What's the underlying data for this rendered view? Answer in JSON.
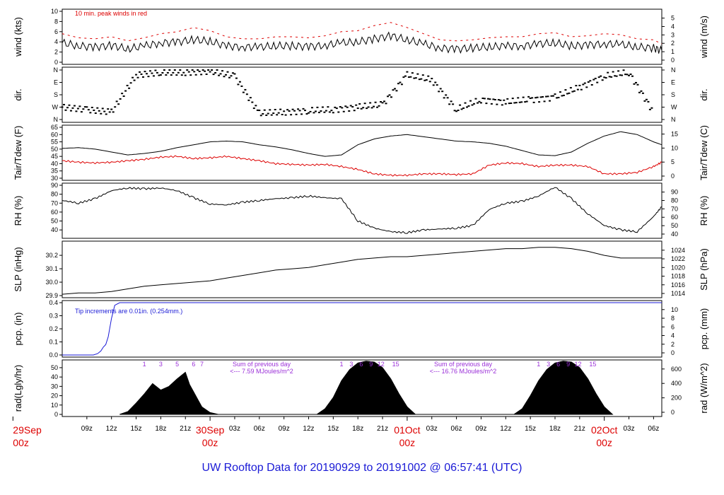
{
  "title": "UW Rooftop Data for 20190929  to  20191002 @ 06:57:41  (UTC)",
  "colors": {
    "series_black": "#000000",
    "series_red": "#dd0000",
    "series_blue": "#1a1ad6",
    "annot_purple": "#9b30d8",
    "title_blue": "#1a1ad6"
  },
  "x_axis": {
    "start": "2019-09-29 06:00Z",
    "end": "2019-10-02 06:57Z",
    "hour_ticks": [
      {
        "t": 3,
        "label": "09z"
      },
      {
        "t": 6,
        "label": "12z"
      },
      {
        "t": 9,
        "label": "15z"
      },
      {
        "t": 12,
        "label": "18z"
      },
      {
        "t": 15,
        "label": "21z"
      },
      {
        "t": 21,
        "label": "03z"
      },
      {
        "t": 24,
        "label": "06z"
      },
      {
        "t": 27,
        "label": "09z"
      },
      {
        "t": 30,
        "label": "12z"
      },
      {
        "t": 33,
        "label": "15z"
      },
      {
        "t": 36,
        "label": "18z"
      },
      {
        "t": 39,
        "label": "21z"
      },
      {
        "t": 45,
        "label": "03z"
      },
      {
        "t": 48,
        "label": "06z"
      },
      {
        "t": 51,
        "label": "09z"
      },
      {
        "t": 54,
        "label": "12z"
      },
      {
        "t": 57,
        "label": "15z"
      },
      {
        "t": 60,
        "label": "18z"
      },
      {
        "t": 63,
        "label": "21z"
      },
      {
        "t": 69,
        "label": "03z"
      },
      {
        "t": 72,
        "label": "06z"
      }
    ],
    "day_labels": [
      {
        "t": -6,
        "date": "29Sep",
        "hour": "00z"
      },
      {
        "t": 18,
        "date": "30Sep",
        "hour": "00z"
      },
      {
        "t": 42,
        "date": "01Oct",
        "hour": "00z"
      },
      {
        "t": 66,
        "date": "02Oct",
        "hour": "00z"
      }
    ]
  },
  "panels": [
    {
      "id": "wind",
      "left_label": "wind (kts)",
      "right_label": "wind (m/s)",
      "left_ticks": [
        "0",
        "2",
        "4",
        "6",
        "8",
        "10"
      ],
      "left_range": [
        0,
        10
      ],
      "right_ticks": [
        "0",
        "1",
        "2",
        "3",
        "4",
        "5"
      ],
      "right_range": [
        0,
        5
      ],
      "annotation": "10 min. peak winds in red"
    },
    {
      "id": "dir",
      "left_label": "dir.",
      "right_label": "dir.",
      "left_ticks": [
        "N",
        "E",
        "S",
        "W",
        "N"
      ],
      "right_ticks": [
        "N",
        "E",
        "S",
        "W",
        "N"
      ]
    },
    {
      "id": "temp",
      "left_label": "Tair/Tdew (F)",
      "right_label": "Tair/Tdew (C)",
      "left_ticks": [
        "30",
        "35",
        "40",
        "45",
        "50",
        "55",
        "60",
        "65"
      ],
      "left_range": [
        30,
        65
      ],
      "right_ticks": [
        "0",
        "5",
        "10",
        "15"
      ]
    },
    {
      "id": "rh",
      "left_label": "RH (%)",
      "right_label": "RH (%)",
      "left_ticks": [
        "40",
        "50",
        "60",
        "70",
        "80",
        "90"
      ],
      "left_range": [
        33,
        90
      ],
      "right_ticks": [
        "40",
        "50",
        "60",
        "70",
        "80",
        "90"
      ]
    },
    {
      "id": "slp",
      "left_label": "SLP (inHg)",
      "right_label": "SLP (hPa)",
      "left_ticks": [
        "29.9",
        "30.0",
        "30.1",
        "30.2"
      ],
      "left_range": [
        29.9,
        30.29
      ],
      "right_ticks": [
        "1014",
        "1016",
        "1018",
        "1020",
        "1022",
        "1024"
      ]
    },
    {
      "id": "pcp",
      "left_label": "pcp. (in)",
      "right_label": "pcp. (mm)",
      "left_ticks": [
        "0.0",
        "0.1",
        "0.2",
        "0.3",
        "0.4"
      ],
      "left_range": [
        0,
        0.4
      ],
      "right_ticks": [
        "0",
        "2",
        "4",
        "6",
        "8",
        "10"
      ],
      "annotation": "Tip increments are 0.01in. (0.254mm.)"
    },
    {
      "id": "rad",
      "left_label": "rad(Lgly/hr)",
      "right_label": "rad (W/m^2)",
      "left_ticks": [
        "0",
        "10",
        "20",
        "30",
        "40",
        "50"
      ],
      "left_range": [
        0,
        56
      ],
      "right_ticks": [
        "0",
        "200",
        "400",
        "600"
      ],
      "sum_notes": [
        {
          "line1": "Sum of previous day",
          "line2": "<--- 7.59 MJoules/m^2"
        },
        {
          "line1": "Sum of previous day",
          "line2": "<--- 16.76 MJoules/m^2"
        }
      ],
      "hour_marks": [
        {
          "t": 10,
          "label": "1"
        },
        {
          "t": 12,
          "label": "3"
        },
        {
          "t": 14,
          "label": "5"
        },
        {
          "t": 16,
          "label": "6"
        },
        {
          "t": 17,
          "label": "7"
        },
        {
          "t": 34,
          "label": "1"
        },
        {
          "t": 35.2,
          "label": "3"
        },
        {
          "t": 36.4,
          "label": "6"
        },
        {
          "t": 37.6,
          "label": "9"
        },
        {
          "t": 38.8,
          "label": "12"
        },
        {
          "t": 40.6,
          "label": "15"
        },
        {
          "t": 58,
          "label": "1"
        },
        {
          "t": 59.2,
          "label": "3"
        },
        {
          "t": 60.4,
          "label": "6"
        },
        {
          "t": 61.6,
          "label": "9"
        },
        {
          "t": 62.8,
          "label": "12"
        },
        {
          "t": 64.6,
          "label": "15"
        }
      ]
    }
  ],
  "chart_data": {
    "type": "line",
    "title": "UW Rooftop Data for 20190929  to  20191002 @ 06:57:41  (UTC)",
    "x_units": "hours since 2019-09-29 06:00Z",
    "xlim": [
      0,
      73
    ],
    "series": [
      {
        "panel": "wind",
        "name": "wind",
        "color": "#000000",
        "x": [
          0,
          2,
          4,
          6,
          8,
          10,
          12,
          14,
          16,
          18,
          20,
          22,
          24,
          26,
          28,
          30,
          32,
          34,
          36,
          38,
          40,
          42,
          44,
          46,
          48,
          50,
          52,
          54,
          56,
          58,
          60,
          62,
          64,
          66,
          68,
          70,
          72,
          73
        ],
        "y": [
          3.8,
          3.2,
          3.0,
          3.3,
          2.6,
          3.2,
          3.8,
          4.0,
          4.4,
          4.1,
          3.2,
          3.0,
          3.0,
          3.2,
          3.2,
          3.1,
          3.3,
          3.8,
          4.0,
          4.6,
          5.2,
          4.4,
          3.6,
          2.8,
          2.6,
          2.8,
          3.0,
          3.2,
          3.2,
          3.6,
          3.8,
          3.2,
          3.4,
          3.6,
          3.5,
          3.0,
          2.8,
          2.3
        ]
      },
      {
        "panel": "wind",
        "name": "peak",
        "color": "#dd0000",
        "x": [
          0,
          2,
          4,
          6,
          8,
          10,
          12,
          14,
          16,
          18,
          20,
          22,
          24,
          26,
          28,
          30,
          32,
          34,
          36,
          38,
          40,
          42,
          44,
          46,
          48,
          50,
          52,
          54,
          56,
          58,
          60,
          62,
          64,
          66,
          68,
          70,
          72,
          73
        ],
        "y": [
          5.6,
          4.8,
          4.6,
          5.0,
          4.2,
          4.8,
          5.6,
          6.0,
          6.8,
          6.2,
          5.0,
          4.6,
          4.6,
          5.0,
          5.0,
          4.8,
          5.2,
          6.0,
          6.2,
          7.2,
          7.8,
          6.8,
          5.6,
          4.4,
          4.2,
          4.4,
          4.8,
          5.0,
          5.0,
          5.6,
          5.8,
          5.0,
          5.2,
          5.6,
          5.4,
          4.6,
          4.4,
          3.6
        ]
      },
      {
        "panel": "dir",
        "name": "dir",
        "color": "#000000",
        "x": [
          0,
          3,
          6,
          9,
          12,
          15,
          18,
          21,
          24,
          27,
          30,
          33,
          36,
          39,
          42,
          45,
          48,
          51,
          54,
          57,
          60,
          63,
          66,
          69,
          72
        ],
        "y": [
          1.0,
          0.8,
          0.6,
          3.6,
          3.8,
          3.8,
          3.9,
          3.5,
          0.5,
          0.6,
          0.7,
          0.8,
          1.0,
          1.2,
          3.6,
          3.2,
          0.8,
          1.6,
          1.4,
          1.6,
          1.8,
          2.6,
          3.5,
          3.8,
          0.6
        ]
      },
      {
        "panel": "temp",
        "name": "Tair",
        "color": "#000000",
        "x": [
          0,
          2,
          4,
          6,
          8,
          10,
          12,
          14,
          16,
          18,
          20,
          22,
          24,
          26,
          28,
          30,
          32,
          34,
          36,
          38,
          40,
          42,
          44,
          46,
          48,
          50,
          52,
          54,
          56,
          58,
          60,
          62,
          64,
          66,
          68,
          70,
          72,
          73
        ],
        "y": [
          50.5,
          51,
          50,
          48,
          46,
          47,
          48.5,
          51,
          53,
          55,
          55.5,
          55,
          53,
          51.5,
          49.5,
          47,
          45,
          46,
          53,
          57,
          59,
          60,
          58.5,
          57,
          55.5,
          55,
          54,
          52,
          49,
          46,
          45.5,
          48,
          54,
          59,
          62,
          60,
          55,
          53
        ]
      },
      {
        "panel": "temp",
        "name": "Tdew",
        "color": "#dd0000",
        "x": [
          0,
          2,
          4,
          6,
          8,
          10,
          12,
          14,
          16,
          18,
          20,
          22,
          24,
          26,
          28,
          30,
          32,
          34,
          36,
          38,
          40,
          42,
          44,
          46,
          48,
          50,
          52,
          54,
          56,
          58,
          60,
          62,
          64,
          66,
          68,
          70,
          72,
          73
        ],
        "y": [
          42,
          41,
          40.5,
          41,
          42,
          43,
          44.5,
          45,
          43.5,
          44,
          45,
          43.5,
          42,
          40,
          39.5,
          39,
          39.5,
          38,
          36,
          33,
          32,
          32,
          33,
          33,
          32.5,
          33,
          39,
          40.5,
          40,
          38,
          39,
          39,
          38,
          33,
          33,
          34,
          38,
          41
        ]
      },
      {
        "panel": "rh",
        "name": "RH",
        "color": "#000000",
        "x": [
          0,
          2,
          4,
          6,
          8,
          10,
          12,
          14,
          16,
          18,
          20,
          22,
          24,
          26,
          28,
          30,
          32,
          34,
          36,
          38,
          40,
          42,
          44,
          46,
          48,
          50,
          52,
          54,
          56,
          58,
          60,
          62,
          64,
          66,
          68,
          70,
          72,
          73
        ],
        "y": [
          73,
          70,
          75,
          84,
          87,
          86,
          87,
          84,
          76,
          69,
          68,
          71,
          73,
          75,
          76,
          78,
          76,
          75,
          50,
          42,
          38,
          37,
          40,
          41,
          42,
          45,
          63,
          70,
          72,
          78,
          88,
          75,
          58,
          45,
          40,
          38,
          55,
          66
        ]
      },
      {
        "panel": "slp",
        "name": "SLP",
        "color": "#000000",
        "x": [
          0,
          2,
          4,
          6,
          8,
          10,
          12,
          14,
          16,
          18,
          20,
          22,
          24,
          26,
          28,
          30,
          32,
          34,
          36,
          38,
          40,
          42,
          44,
          46,
          48,
          50,
          52,
          54,
          56,
          58,
          60,
          62,
          64,
          66,
          68,
          70,
          72,
          73
        ],
        "y": [
          29.91,
          29.92,
          29.92,
          29.93,
          29.95,
          29.97,
          29.98,
          29.99,
          30.0,
          30.01,
          30.03,
          30.05,
          30.07,
          30.09,
          30.1,
          30.11,
          30.13,
          30.15,
          30.17,
          30.18,
          30.19,
          30.19,
          30.2,
          30.21,
          30.22,
          30.23,
          30.24,
          30.25,
          30.25,
          30.26,
          30.26,
          30.25,
          30.23,
          30.2,
          30.18,
          30.18,
          30.18,
          30.18
        ]
      },
      {
        "panel": "pcp",
        "name": "pcp",
        "color": "#1a1ad6",
        "x": [
          0,
          3,
          3.8,
          4.3,
          4.7,
          5.0,
          5.3,
          5.6,
          6.0,
          6.4,
          7.0,
          30,
          60,
          73
        ],
        "y": [
          0,
          0,
          0,
          0.01,
          0.03,
          0.06,
          0.08,
          0.14,
          0.28,
          0.38,
          0.4,
          0.4,
          0.4,
          0.4
        ]
      },
      {
        "panel": "rad",
        "name": "rad",
        "color": "#000000",
        "x": [
          7,
          8,
          9,
          10,
          11,
          12,
          13,
          14,
          15,
          15.5,
          16,
          16.5,
          17,
          18,
          19,
          31,
          32,
          33,
          34,
          35,
          36,
          37,
          38,
          39,
          40,
          41,
          42,
          43,
          55,
          56,
          57,
          58,
          59,
          60,
          61,
          62,
          63,
          64,
          65,
          66,
          67
        ],
        "y": [
          0,
          3,
          12,
          22,
          33,
          26,
          30,
          38,
          45,
          32,
          24,
          16,
          8,
          2,
          0,
          0,
          6,
          18,
          36,
          48,
          55,
          57,
          56,
          50,
          38,
          22,
          8,
          0,
          0,
          6,
          20,
          36,
          48,
          55,
          57,
          56,
          50,
          38,
          22,
          8,
          0
        ]
      }
    ]
  }
}
